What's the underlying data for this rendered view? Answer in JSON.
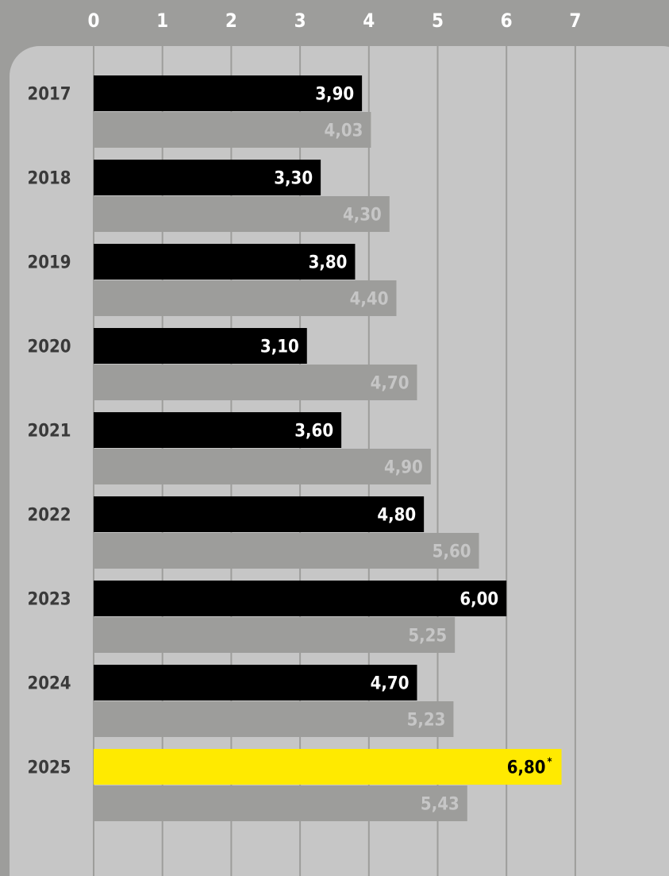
{
  "chart_data": {
    "type": "bar",
    "orientation": "horizontal",
    "title": "",
    "xlabel": "",
    "ylabel": "",
    "xlim": [
      0,
      7
    ],
    "x_ticks": [
      "0",
      "1",
      "2",
      "3",
      "4",
      "5",
      "6",
      "7"
    ],
    "grid": true,
    "decimal_separator": ",",
    "categories": [
      "2017",
      "2018",
      "2019",
      "2020",
      "2021",
      "2022",
      "2023",
      "2024",
      "2025"
    ],
    "series": [
      {
        "values": [
          3.9,
          3.3,
          3.8,
          3.1,
          3.6,
          4.8,
          6.0,
          4.7,
          6.8
        ],
        "labels": [
          "3,90",
          "3,30",
          "3,80",
          "3,10",
          "3,60",
          "4,80",
          "6,00",
          "4,70",
          "6,80"
        ],
        "color": "#000000"
      },
      {
        "values": [
          4.03,
          4.3,
          4.4,
          4.7,
          4.9,
          5.6,
          5.25,
          5.23,
          5.43
        ],
        "labels": [
          "4,03",
          "4,30",
          "4,40",
          "4,70",
          "4,90",
          "5,60",
          "5,25",
          "5,23",
          "5,43"
        ],
        "color": "#9d9d9b"
      }
    ],
    "highlight": {
      "category": "2025",
      "series_index": 0,
      "color": "#ffea00",
      "marker": "*"
    },
    "colors": {
      "background": "#9d9d9b",
      "panel": "#c6c6c6",
      "grid": "#9d9d9b"
    }
  }
}
